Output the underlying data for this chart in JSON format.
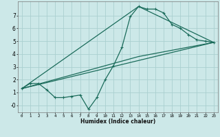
{
  "title": "",
  "xlabel": "Humidex (Indice chaleur)",
  "ylabel": "",
  "bg_color": "#cce8e8",
  "line_color": "#1a6b5a",
  "grid_color": "#aacfcf",
  "xlim": [
    -0.5,
    23.5
  ],
  "ylim": [
    -0.55,
    8.1
  ],
  "xticks": [
    0,
    1,
    2,
    3,
    4,
    5,
    6,
    7,
    8,
    9,
    10,
    11,
    12,
    13,
    14,
    15,
    16,
    17,
    18,
    19,
    20,
    21,
    22,
    23
  ],
  "yticks": [
    0,
    1,
    2,
    3,
    4,
    5,
    6,
    7
  ],
  "ytick_labels": [
    "-0",
    "1",
    "2",
    "3",
    "4",
    "5",
    "6",
    "7"
  ],
  "line1_x": [
    0,
    1,
    2,
    3,
    4,
    5,
    6,
    7,
    8,
    9,
    10,
    11,
    12,
    13,
    14,
    15,
    16,
    17,
    18,
    19,
    20,
    21,
    22,
    23
  ],
  "line1_y": [
    1.3,
    1.7,
    1.7,
    1.2,
    0.6,
    0.6,
    0.7,
    0.8,
    -0.3,
    0.6,
    2.0,
    3.1,
    4.5,
    6.9,
    7.7,
    7.5,
    7.5,
    7.2,
    6.3,
    6.0,
    5.5,
    5.1,
    5.0,
    4.9
  ],
  "line2_x": [
    0,
    23
  ],
  "line2_y": [
    1.3,
    4.9
  ],
  "line3_x": [
    0,
    14,
    23
  ],
  "line3_y": [
    1.3,
    7.7,
    4.9
  ],
  "line4_x": [
    0,
    14,
    23
  ],
  "line4_y": [
    1.3,
    3.8,
    4.9
  ]
}
